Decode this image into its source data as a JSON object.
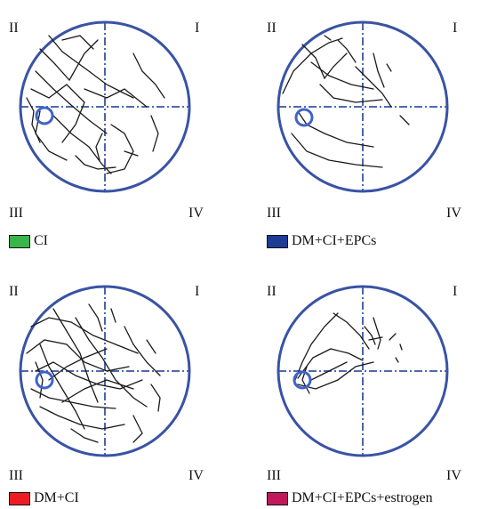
{
  "quadrant_labels": {
    "I": "I",
    "II": "II",
    "III": "III",
    "IV": "IV"
  },
  "colors": {
    "pool_circle": "#3953a4",
    "quadrant_lines": "#3953a4",
    "platform": "#3f63c8",
    "swim_path": "#1a1a1a"
  },
  "panels": [
    {
      "id": "ci",
      "legend_label": "CI",
      "legend_color": "#3ab54a"
    },
    {
      "id": "dm-ci-epcs",
      "legend_label": "DM+CI+EPCs",
      "legend_color": "#1d3c96"
    },
    {
      "id": "dm-ci",
      "legend_label": "DM+CI",
      "legend_color": "#ed1c24"
    },
    {
      "id": "dm-ci-epcs-estrogen",
      "legend_label": "DM+CI+EPCs+estrogen",
      "legend_color": "#c2185b"
    }
  ]
}
